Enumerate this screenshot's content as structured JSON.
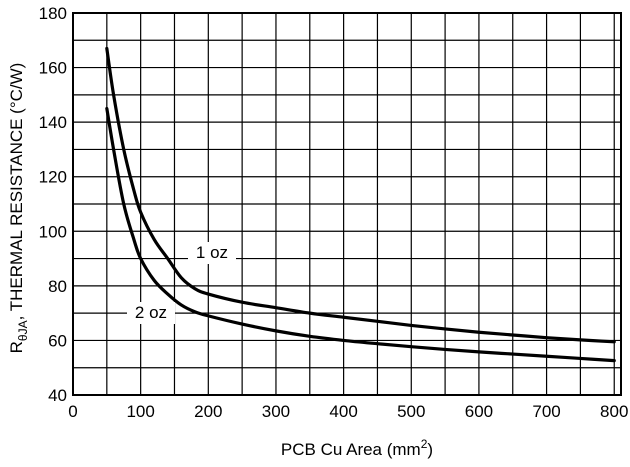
{
  "chart_data": {
    "type": "line",
    "xlabel": {
      "main": "PCB Cu Area (mm",
      "sup": "2",
      "tail": ")"
    },
    "ylabel": {
      "main": "R",
      "sub": "θJA",
      "tail": ", THERMAL RESISTANCE (°C/W)"
    },
    "xlim": [
      0,
      810
    ],
    "ylim": [
      40,
      180
    ],
    "x_ticks": [
      0,
      100,
      200,
      300,
      400,
      500,
      600,
      700,
      800
    ],
    "y_ticks": [
      40,
      60,
      80,
      100,
      120,
      140,
      160,
      180
    ],
    "grid": true,
    "x_grid_step": 50,
    "y_grid_step": 10,
    "series": [
      {
        "name": "1 oz",
        "x": [
          50,
          60,
          75,
          90,
          100,
          120,
          140,
          160,
          180,
          200,
          250,
          300,
          350,
          400,
          450,
          500,
          550,
          600,
          650,
          700,
          750,
          800
        ],
        "y": [
          167,
          150,
          130,
          115,
          107,
          97,
          90,
          83,
          79,
          77,
          74,
          72,
          70,
          68.5,
          67,
          65.5,
          64.2,
          63,
          62,
          61,
          60.2,
          59.5
        ]
      },
      {
        "name": "2 oz",
        "x": [
          50,
          60,
          75,
          90,
          100,
          120,
          140,
          160,
          180,
          200,
          250,
          300,
          350,
          400,
          450,
          500,
          550,
          600,
          650,
          700,
          750,
          800
        ],
        "y": [
          145,
          130,
          110,
          97,
          90,
          82,
          77,
          73,
          70.5,
          69,
          66,
          63.5,
          61.5,
          60,
          58.8,
          57.7,
          56.7,
          55.8,
          55,
          54.2,
          53.4,
          52.6
        ]
      }
    ]
  }
}
